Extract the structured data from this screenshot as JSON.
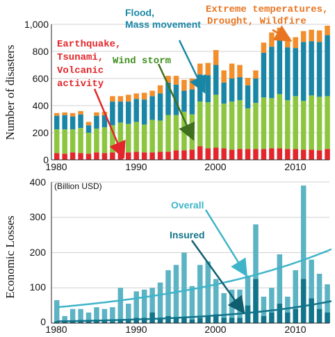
{
  "chart_data": [
    {
      "type": "bar",
      "stacked": true,
      "ylabel": "Number of disasters",
      "ylim": [
        0,
        1000
      ],
      "yticks": [
        "0",
        "200",
        "400",
        "600",
        "800",
        "1,000"
      ],
      "xticks": [
        "1980",
        "1990",
        "2000",
        "2010"
      ],
      "x": [
        1980,
        1981,
        1982,
        1983,
        1984,
        1985,
        1986,
        1987,
        1988,
        1989,
        1990,
        1991,
        1992,
        1993,
        1994,
        1995,
        1996,
        1997,
        1998,
        1999,
        2000,
        2001,
        2002,
        2003,
        2004,
        2005,
        2006,
        2007,
        2008,
        2009,
        2010,
        2011,
        2012,
        2013,
        2014
      ],
      "series": [
        {
          "name": "Earthquake, Tsunami, Volcanic activity",
          "color": "#e3262b",
          "values": [
            50,
            45,
            55,
            50,
            45,
            55,
            50,
            55,
            60,
            55,
            60,
            55,
            55,
            60,
            60,
            70,
            70,
            75,
            100,
            85,
            90,
            85,
            75,
            80,
            80,
            80,
            80,
            85,
            85,
            80,
            80,
            75,
            75,
            70,
            80
          ]
        },
        {
          "name": "Wind storm",
          "color": "#8cc63f",
          "values": [
            175,
            180,
            170,
            185,
            155,
            175,
            190,
            200,
            215,
            210,
            220,
            205,
            240,
            230,
            270,
            260,
            285,
            260,
            330,
            340,
            390,
            330,
            355,
            360,
            300,
            340,
            380,
            370,
            400,
            360,
            390,
            360,
            400,
            395,
            390
          ]
        },
        {
          "name": "Flood, Mass movement",
          "color": "#1a86a6",
          "values": [
            100,
            105,
            95,
            100,
            55,
            95,
            90,
            175,
            155,
            165,
            170,
            185,
            175,
            200,
            240,
            225,
            155,
            185,
            200,
            200,
            220,
            155,
            170,
            170,
            170,
            180,
            330,
            380,
            400,
            390,
            355,
            435,
            400,
            405,
            450
          ]
        },
        {
          "name": "Extreme temperatures, Drought, Wildfire",
          "color": "#f28e2c",
          "values": [
            20,
            20,
            25,
            25,
            25,
            25,
            25,
            40,
            40,
            50,
            40,
            50,
            40,
            60,
            50,
            65,
            80,
            80,
            80,
            90,
            110,
            90,
            110,
            90,
            55,
            60,
            75,
            105,
            90,
            75,
            80,
            80,
            85,
            85,
            70
          ]
        }
      ],
      "annotations": [
        {
          "lines": [
            "Flood,",
            "Mass movement"
          ],
          "color": "#1a86a6"
        },
        {
          "lines": [
            "Extreme temperatures,",
            "Drought, Wildfire"
          ],
          "color": "#e87522"
        },
        {
          "lines": [
            "Earthquake,",
            "Tsunami,",
            "Volcanic",
            "activity"
          ],
          "color": "#e3262b"
        },
        {
          "lines": [
            "Wind storm"
          ],
          "color": "#3f8f1f"
        }
      ]
    },
    {
      "type": "bar",
      "ylabel": "Economic Losses",
      "unit_label": "(Billion USD)",
      "ylim": [
        0,
        400
      ],
      "yticks": [
        "0",
        "100",
        "200",
        "300",
        "400"
      ],
      "xticks": [
        "1980",
        "1990",
        "2000",
        "2010"
      ],
      "x": [
        1980,
        1981,
        1982,
        1983,
        1984,
        1985,
        1986,
        1987,
        1988,
        1989,
        1990,
        1991,
        1992,
        1993,
        1994,
        1995,
        1996,
        1997,
        1998,
        1999,
        2000,
        2001,
        2002,
        2003,
        2004,
        2005,
        2006,
        2007,
        2008,
        2009,
        2010,
        2011,
        2012,
        2013,
        2014
      ],
      "series": [
        {
          "name": "Overall",
          "color": "#5bb3c4",
          "values": [
            65,
            20,
            40,
            40,
            30,
            45,
            40,
            45,
            100,
            55,
            90,
            95,
            100,
            115,
            150,
            165,
            200,
            105,
            165,
            175,
            125,
            85,
            95,
            95,
            135,
            280,
            75,
            100,
            195,
            75,
            150,
            390,
            180,
            140,
            110
          ]
        },
        {
          "name": "Insured",
          "color": "#12748a",
          "values": [
            5,
            3,
            5,
            5,
            5,
            5,
            5,
            5,
            10,
            10,
            15,
            15,
            30,
            15,
            20,
            15,
            15,
            10,
            15,
            20,
            25,
            15,
            15,
            15,
            50,
            125,
            20,
            30,
            55,
            30,
            40,
            125,
            70,
            40,
            30
          ]
        }
      ],
      "trend_lines": [
        {
          "name": "Overall",
          "color": "#3fb4c8",
          "start": 45,
          "end": 205
        },
        {
          "name": "Insured",
          "color": "#12748a",
          "start": 5,
          "end": 60
        }
      ]
    }
  ]
}
